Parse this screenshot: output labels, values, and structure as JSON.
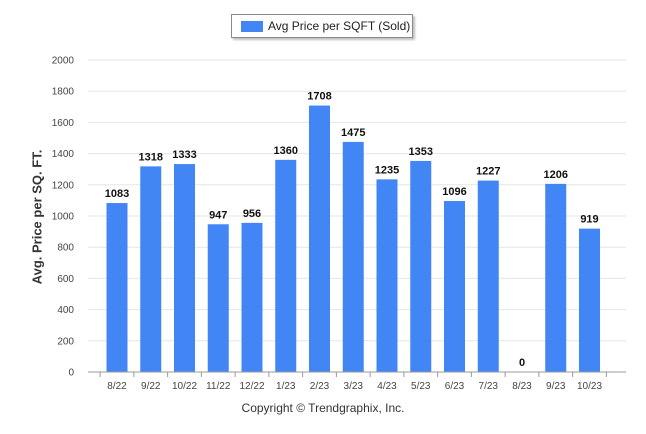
{
  "colors": {
    "bar": "#4285f4",
    "grid": "#e6e6e6",
    "axis": "#999999"
  },
  "footer": {
    "copyright": "Copyright © Trendgraphix, Inc."
  },
  "chart_data": {
    "type": "bar",
    "title": "",
    "ylabel": "Avg. Price per SQ. FT.",
    "xlabel": "",
    "categories": [
      "8/22",
      "9/22",
      "10/22",
      "11/22",
      "12/22",
      "1/23",
      "2/23",
      "3/23",
      "4/23",
      "5/23",
      "6/23",
      "7/23",
      "8/23",
      "9/23",
      "10/23"
    ],
    "series": [
      {
        "name": "Avg Price per SQFT (Sold)",
        "values": [
          1083,
          1318,
          1333,
          947,
          956,
          1360,
          1708,
          1475,
          1235,
          1353,
          1096,
          1227,
          0,
          1206,
          919
        ]
      }
    ],
    "ylim": [
      0,
      2000
    ],
    "yticks": [
      0,
      200,
      400,
      600,
      800,
      1000,
      1200,
      1400,
      1600,
      1800,
      2000
    ],
    "grid": true,
    "legend": "top-center"
  }
}
